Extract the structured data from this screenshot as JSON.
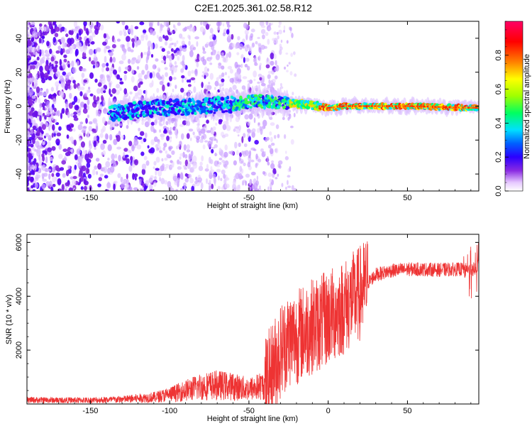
{
  "figure_title": "C2E1.2025.361.02.58.R12",
  "chart_data": [
    {
      "type": "heatmap",
      "title": "C2E1.2025.361.02.58.R12",
      "xlabel": "Height of straight line (km)",
      "ylabel": "Frequency (Hz)",
      "xlim": [
        -190,
        95
      ],
      "ylim": [
        -50,
        50
      ],
      "xticks": [
        -150,
        -100,
        -50,
        0,
        50
      ],
      "yticks": [
        -40,
        -20,
        0,
        20,
        40
      ],
      "colorbar": {
        "label": "Normalized spectral amplitude",
        "range": [
          0,
          1
        ],
        "ticks": [
          0.0,
          0.2,
          0.4,
          0.6,
          0.8
        ],
        "colors": [
          "#ffffff",
          "#e6c8ff",
          "#8a2be2",
          "#2b00ff",
          "#0060ff",
          "#00e0ff",
          "#00ff60",
          "#a0ff00",
          "#ffff00",
          "#ff8000",
          "#ff0000",
          "#ff0066"
        ]
      },
      "ridge_center_hz": [
        {
          "x": -135,
          "y": -4
        },
        {
          "x": -120,
          "y": -2
        },
        {
          "x": -100,
          "y": -1
        },
        {
          "x": -80,
          "y": 0
        },
        {
          "x": -60,
          "y": 1
        },
        {
          "x": -45,
          "y": 3
        },
        {
          "x": -30,
          "y": 2
        },
        {
          "x": -15,
          "y": 1
        },
        {
          "x": -5,
          "y": 0
        },
        {
          "x": 0,
          "y": -1
        },
        {
          "x": 10,
          "y": 0
        },
        {
          "x": 50,
          "y": 0
        },
        {
          "x": 90,
          "y": -1
        }
      ]
    },
    {
      "type": "line",
      "xlabel": "Height of straight line (km)",
      "ylabel": "SNR (10 * v/v)",
      "xlim": [
        -190,
        95
      ],
      "ylim": [
        0,
        6300
      ],
      "xticks": [
        -150,
        -100,
        -50,
        0,
        50
      ],
      "yticks": [
        2000,
        4000,
        6000
      ],
      "color": "#ee3333",
      "series": [
        {
          "name": "SNR",
          "x": [
            -190,
            -170,
            -150,
            -130,
            -110,
            -100,
            -90,
            -80,
            -70,
            -60,
            -50,
            -40,
            -35,
            -30,
            -25,
            -20,
            -15,
            -10,
            -5,
            0,
            5,
            10,
            15,
            20,
            25,
            30,
            40,
            50,
            60,
            70,
            80,
            85,
            90,
            95
          ],
          "y": [
            150,
            140,
            140,
            170,
            250,
            350,
            500,
            650,
            700,
            650,
            550,
            700,
            1300,
            2000,
            2400,
            2500,
            2700,
            2900,
            3000,
            3200,
            3400,
            3600,
            3850,
            4100,
            4500,
            4800,
            4950,
            5000,
            5000,
            4980,
            5000,
            5000,
            4950,
            5100
          ]
        }
      ]
    }
  ]
}
